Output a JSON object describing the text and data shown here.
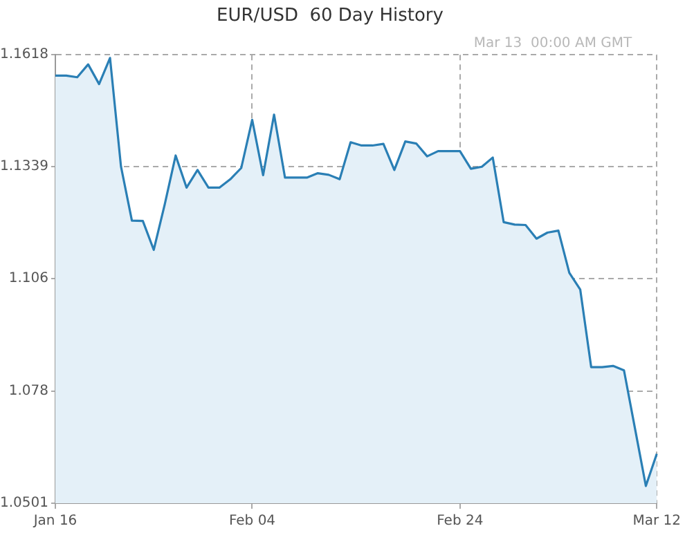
{
  "chart_data": {
    "type": "area",
    "title": "EUR/USD  60 Day History",
    "annotations": [
      "Mar 13  00:00 AM GMT"
    ],
    "categories": [
      "Jan 16",
      null,
      null,
      null,
      null,
      null,
      null,
      null,
      null,
      null,
      null,
      null,
      null,
      null,
      null,
      null,
      null,
      null,
      "Feb 04",
      null,
      null,
      null,
      null,
      null,
      null,
      null,
      null,
      null,
      null,
      null,
      null,
      null,
      null,
      null,
      null,
      null,
      null,
      "Feb 24",
      null,
      null,
      null,
      null,
      null,
      null,
      null,
      null,
      null,
      null,
      null,
      null,
      null,
      null,
      null,
      null,
      null,
      "Mar 12"
    ],
    "series": [
      {
        "color": "#2a7fb5",
        "values": [
          1.1566,
          1.1566,
          1.1562,
          1.1594,
          1.1545,
          1.161,
          1.134,
          1.1205,
          1.1204,
          1.1132,
          1.1245,
          1.1367,
          1.1287,
          1.1331,
          1.1287,
          1.1287,
          1.1308,
          1.1336,
          1.1456,
          1.1318,
          1.1469,
          1.1312,
          1.1312,
          1.1312,
          1.1323,
          1.1319,
          1.1308,
          1.14,
          1.1392,
          1.1392,
          1.1396,
          1.1331,
          1.1402,
          1.1397,
          1.1365,
          1.1378,
          1.1378,
          1.1378,
          1.1334,
          1.1339,
          1.1362,
          1.1201,
          1.1195,
          1.1194,
          1.116,
          1.1175,
          1.118,
          1.1075,
          1.1033,
          1.084,
          1.084,
          1.0843,
          1.0832,
          1.0688,
          1.0544,
          1.0624
        ]
      }
    ],
    "ylim": [
      1.0501,
      1.1618
    ],
    "yticks": [
      1.0501,
      1.078,
      1.106,
      1.1339,
      1.1618
    ],
    "grid": true,
    "legend": false
  }
}
